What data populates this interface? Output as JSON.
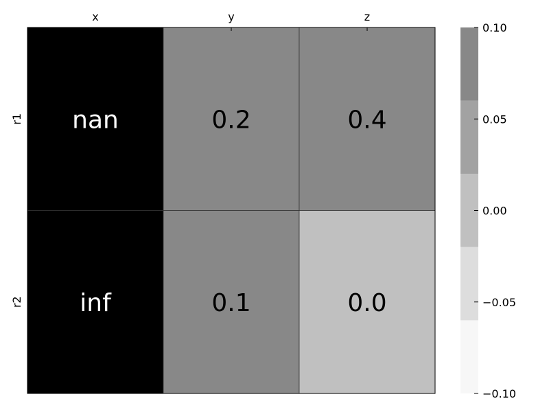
{
  "chart_data": {
    "type": "heatmap",
    "x_categories": [
      "x",
      "y",
      "z"
    ],
    "y_categories": [
      "r1",
      "r2"
    ],
    "cells": [
      [
        {
          "label": "nan",
          "color": "#000000",
          "text_color": "#ffffff"
        },
        {
          "label": "0.2",
          "color": "#888888",
          "text_color": "#000000"
        },
        {
          "label": "0.4",
          "color": "#888888",
          "text_color": "#000000"
        }
      ],
      [
        {
          "label": "inf",
          "color": "#000000",
          "text_color": "#ffffff"
        },
        {
          "label": "0.1",
          "color": "#888888",
          "text_color": "#000000"
        },
        {
          "label": "0.0",
          "color": "#c0c0c0",
          "text_color": "#000000"
        }
      ]
    ],
    "colorbar": {
      "range": [
        -0.1,
        0.1
      ],
      "ticks": [
        {
          "value": 0.1,
          "label": "0.10"
        },
        {
          "value": 0.05,
          "label": "0.05"
        },
        {
          "value": 0.0,
          "label": "0.00"
        },
        {
          "value": -0.05,
          "label": "−0.05"
        },
        {
          "value": -0.1,
          "label": "−0.10"
        }
      ],
      "bands": [
        {
          "from": -0.1,
          "to": -0.06,
          "color": "#f7f7f7"
        },
        {
          "from": -0.06,
          "to": -0.02,
          "color": "#dddddd"
        },
        {
          "from": -0.02,
          "to": 0.02,
          "color": "#c0c0c0"
        },
        {
          "from": 0.02,
          "to": 0.06,
          "color": "#a2a2a2"
        },
        {
          "from": 0.06,
          "to": 0.1,
          "color": "#888888"
        }
      ]
    },
    "x_axis_position": "top",
    "grid": false,
    "legend": "colorbar-right"
  }
}
